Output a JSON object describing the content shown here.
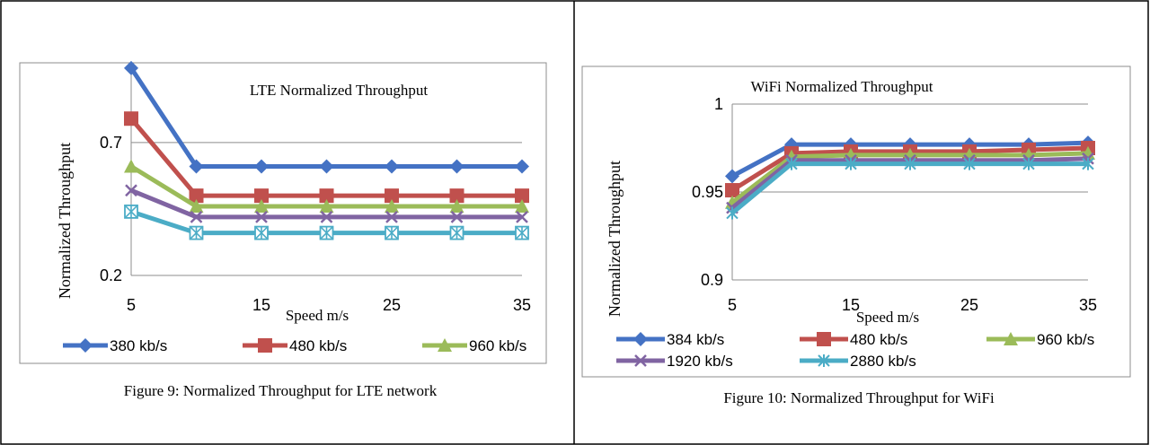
{
  "figures": [
    {
      "caption": "Figure 9: Normalized Throughput for LTE network"
    },
    {
      "caption": "Figure 10:  Normalized Throughput for WiFi"
    }
  ],
  "chart_data": [
    {
      "type": "line",
      "title": "LTE Normalized Throughput",
      "xlabel": "Speed m/s",
      "ylabel": "Normalized  Throughput",
      "x": [
        5,
        10,
        15,
        20,
        25,
        30,
        35
      ],
      "x_ticks": [
        "5",
        "15",
        "25",
        "35"
      ],
      "y_ticks": [
        "0.2",
        "0.7"
      ],
      "xlim": [
        5,
        35
      ],
      "ylim": [
        0.2,
        1.0
      ],
      "grid": "horizontal",
      "legend_position": "bottom",
      "series": [
        {
          "name": "380 kb/s",
          "color": "#4472C4",
          "marker": "diamond",
          "values": [
            0.98,
            0.61,
            0.61,
            0.61,
            0.61,
            0.61,
            0.61
          ]
        },
        {
          "name": "480  kb/s",
          "color": "#C0504D",
          "marker": "square",
          "values": [
            0.79,
            0.5,
            0.5,
            0.5,
            0.5,
            0.5,
            0.5
          ]
        },
        {
          "name": "960 kb/s",
          "color": "#9BBB59",
          "marker": "triangle",
          "values": [
            0.61,
            0.46,
            0.46,
            0.46,
            0.46,
            0.46,
            0.46
          ]
        },
        {
          "name": "",
          "color": "#8064A2",
          "marker": "x",
          "values": [
            0.52,
            0.42,
            0.42,
            0.42,
            0.42,
            0.42,
            0.42
          ]
        },
        {
          "name": "",
          "color": "#4BACC6",
          "marker": "boxstar",
          "values": [
            0.44,
            0.36,
            0.36,
            0.36,
            0.36,
            0.36,
            0.36
          ]
        }
      ]
    },
    {
      "type": "line",
      "title": "WiFi Normalized Throughput",
      "xlabel": "Speed m/s",
      "ylabel": "Normalized  Throughput",
      "x": [
        5,
        10,
        15,
        20,
        25,
        30,
        35
      ],
      "x_ticks": [
        "5",
        "15",
        "25",
        "35"
      ],
      "y_ticks": [
        "0.9",
        "0.95",
        "1"
      ],
      "xlim": [
        5,
        35
      ],
      "ylim": [
        0.9,
        1.0
      ],
      "grid": "horizontal",
      "legend_position": "bottom",
      "series": [
        {
          "name": "384 kb/s",
          "color": "#4472C4",
          "marker": "diamond",
          "values": [
            0.959,
            0.977,
            0.977,
            0.977,
            0.977,
            0.977,
            0.978
          ]
        },
        {
          "name": "480 kb/s",
          "color": "#C0504D",
          "marker": "square",
          "values": [
            0.951,
            0.972,
            0.973,
            0.973,
            0.973,
            0.974,
            0.975
          ]
        },
        {
          "name": "960 kb/s",
          "color": "#9BBB59",
          "marker": "triangle",
          "values": [
            0.944,
            0.97,
            0.971,
            0.971,
            0.971,
            0.971,
            0.972
          ]
        },
        {
          "name": "1920 kb/s",
          "color": "#8064A2",
          "marker": "x",
          "values": [
            0.941,
            0.968,
            0.968,
            0.968,
            0.968,
            0.968,
            0.969
          ]
        },
        {
          "name": "2880 kb/s",
          "color": "#4BACC6",
          "marker": "star",
          "values": [
            0.938,
            0.966,
            0.966,
            0.966,
            0.966,
            0.966,
            0.966
          ]
        }
      ]
    }
  ]
}
